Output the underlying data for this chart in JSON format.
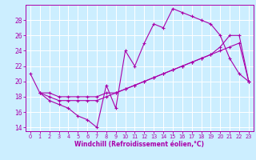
{
  "xlabel": "Windchill (Refroidissement éolien,°C)",
  "bg_color": "#cceeff",
  "line_color": "#aa00aa",
  "grid_color": "#ffffff",
  "xlim": [
    -0.5,
    23.5
  ],
  "ylim": [
    13.5,
    30.0
  ],
  "yticks": [
    14,
    16,
    18,
    20,
    22,
    24,
    26,
    28
  ],
  "xticks": [
    0,
    1,
    2,
    3,
    4,
    5,
    6,
    7,
    8,
    9,
    10,
    11,
    12,
    13,
    14,
    15,
    16,
    17,
    18,
    19,
    20,
    21,
    22,
    23
  ],
  "line1_x": [
    0,
    1,
    2,
    3,
    4,
    5,
    6,
    7,
    8,
    9,
    10,
    11,
    12,
    13,
    14,
    15,
    16,
    17,
    18,
    19,
    20,
    21,
    22,
    23
  ],
  "line1_y": [
    21.0,
    18.5,
    17.5,
    17.0,
    16.5,
    15.5,
    15.0,
    14.0,
    19.5,
    16.5,
    24.0,
    22.0,
    25.0,
    27.5,
    27.0,
    29.5,
    29.0,
    28.5,
    28.0,
    27.5,
    26.0,
    23.0,
    21.0,
    20.0
  ],
  "line2_x": [
    1,
    2,
    3,
    4,
    5,
    6,
    7,
    8,
    9,
    10,
    11,
    12,
    13,
    14,
    15,
    16,
    17,
    18,
    19,
    20,
    21,
    22,
    23
  ],
  "line2_y": [
    18.5,
    18.0,
    17.5,
    17.5,
    17.5,
    17.5,
    17.5,
    18.0,
    18.5,
    19.0,
    19.5,
    20.0,
    20.5,
    21.0,
    21.5,
    22.0,
    22.5,
    23.0,
    23.5,
    24.0,
    24.5,
    25.0,
    20.0
  ],
  "line3_x": [
    1,
    2,
    3,
    4,
    5,
    6,
    7,
    8,
    9,
    10,
    11,
    12,
    13,
    14,
    15,
    16,
    17,
    18,
    19,
    20,
    21,
    22,
    23
  ],
  "line3_y": [
    18.5,
    18.5,
    18.0,
    18.0,
    18.0,
    18.0,
    18.0,
    18.5,
    18.5,
    19.0,
    19.5,
    20.0,
    20.5,
    21.0,
    21.5,
    22.0,
    22.5,
    23.0,
    23.5,
    24.5,
    26.0,
    26.0,
    20.0
  ]
}
